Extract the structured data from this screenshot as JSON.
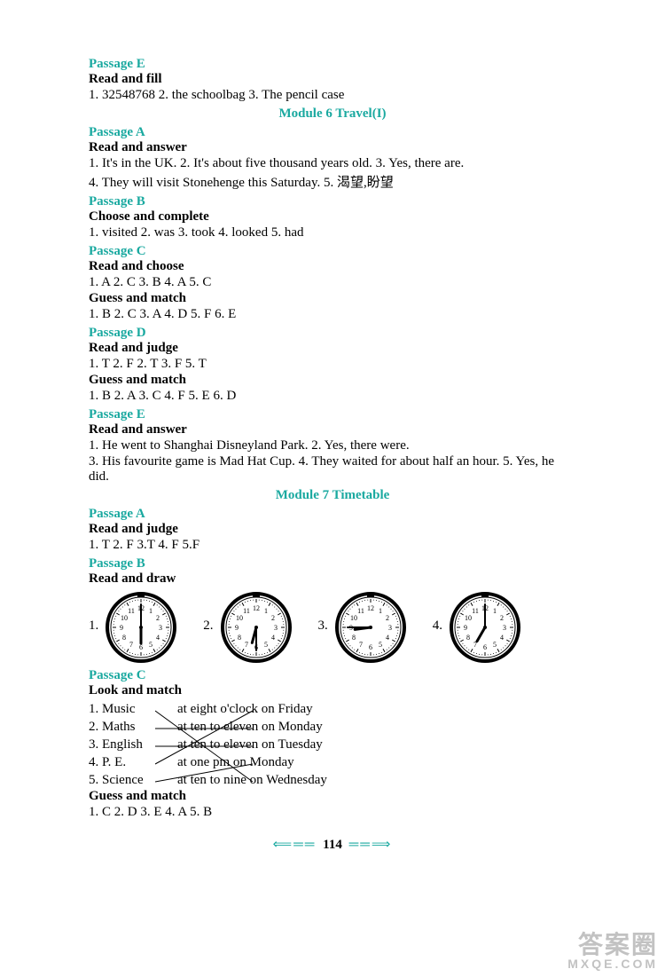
{
  "passageE1": {
    "label": "Passage E",
    "header": "Read and fill",
    "answers": "1. 32548768   2. the schoolbag   3. The pencil case"
  },
  "module6": {
    "title": "Module 6 Travel(I)"
  },
  "passageA1": {
    "label": "Passage A",
    "header": "Read and answer",
    "line1": "1. It's in the UK.   2. It's about five thousand years old.   3. Yes, there are.",
    "line2": "4. They will visit Stonehenge this Saturday.   5. 渴望,盼望"
  },
  "passageB1": {
    "label": "Passage B",
    "header": "Choose and complete",
    "answers": "1. visited   2. was   3. took   4. looked   5. had"
  },
  "passageC1": {
    "label": "Passage C",
    "header1": "Read and choose",
    "answers1": "1. A   2. C   3. B   4. A   5. C",
    "header2": "Guess and match",
    "answers2": "1. B   2. C   3. A   4. D   5. F   6. E"
  },
  "passageD1": {
    "label": "Passage D",
    "header1": "Read and judge",
    "answers1": "1. T   2. F   2. T   3. F   5. T",
    "header2": "Guess and match",
    "answers2": "1. B   2. A   3. C   4. F   5. E   6. D"
  },
  "passageE2": {
    "label": "Passage E",
    "header": "Read and answer",
    "line1": "1. He went to Shanghai Disneyland Park.   2. Yes, there were.",
    "line2": "3. His favourite game is Mad Hat Cup.   4. They waited for about half an hour.   5. Yes, he did."
  },
  "module7": {
    "title": "Module 7   Timetable"
  },
  "passageA2": {
    "label": "Passage A",
    "header": "Read and judge",
    "answers": "1. T   2. F   3.T   4. F   5.F"
  },
  "passageB2": {
    "label": "Passage B",
    "header": "Read and draw",
    "clocks": [
      {
        "num": "1.",
        "hour": 6,
        "minute": 0
      },
      {
        "num": "2.",
        "hour": 6,
        "minute": 30
      },
      {
        "num": "3.",
        "hour": 8,
        "minute": 45
      },
      {
        "num": "4.",
        "hour": 7,
        "minute": 0
      }
    ]
  },
  "passageC2": {
    "label": "Passage C",
    "header1": "Look and match",
    "left": [
      "1. Music",
      "2. Maths",
      "3. English",
      "4. P. E.",
      "5. Science"
    ],
    "right": [
      "at eight o'clock on Friday",
      "at ten to eleven on Monday",
      "at ten to eleven on Tuesday",
      "at one pm on Monday",
      "at ten to nine on Wednesday"
    ],
    "connections": [
      [
        1,
        5
      ],
      [
        2,
        2
      ],
      [
        3,
        3
      ],
      [
        4,
        1
      ],
      [
        5,
        4
      ]
    ],
    "header2": "Guess and match",
    "answers2": "1. C   2. D   3. E   4. A   5. B"
  },
  "page": {
    "number": "114"
  },
  "watermark": {
    "top": "答案圈",
    "bottom": "MXQE.COM"
  },
  "colors": {
    "accent": "#1aa9a0",
    "text": "#000000"
  }
}
